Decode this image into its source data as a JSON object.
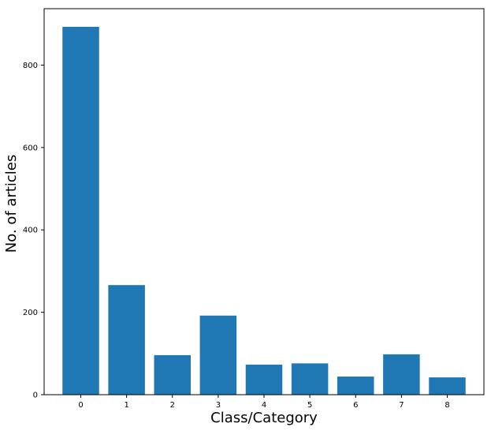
{
  "chart_data": {
    "type": "bar",
    "categories": [
      "0",
      "1",
      "2",
      "3",
      "4",
      "5",
      "6",
      "7",
      "8"
    ],
    "values": [
      893,
      266,
      96,
      192,
      73,
      76,
      44,
      98,
      42
    ],
    "title": "",
    "xlabel": "Class/Category",
    "ylabel": "No. of articles",
    "ylim": [
      0,
      937
    ],
    "yticks": [
      0,
      200,
      400,
      600,
      800
    ],
    "grid": false,
    "color": "#1f77b4"
  }
}
